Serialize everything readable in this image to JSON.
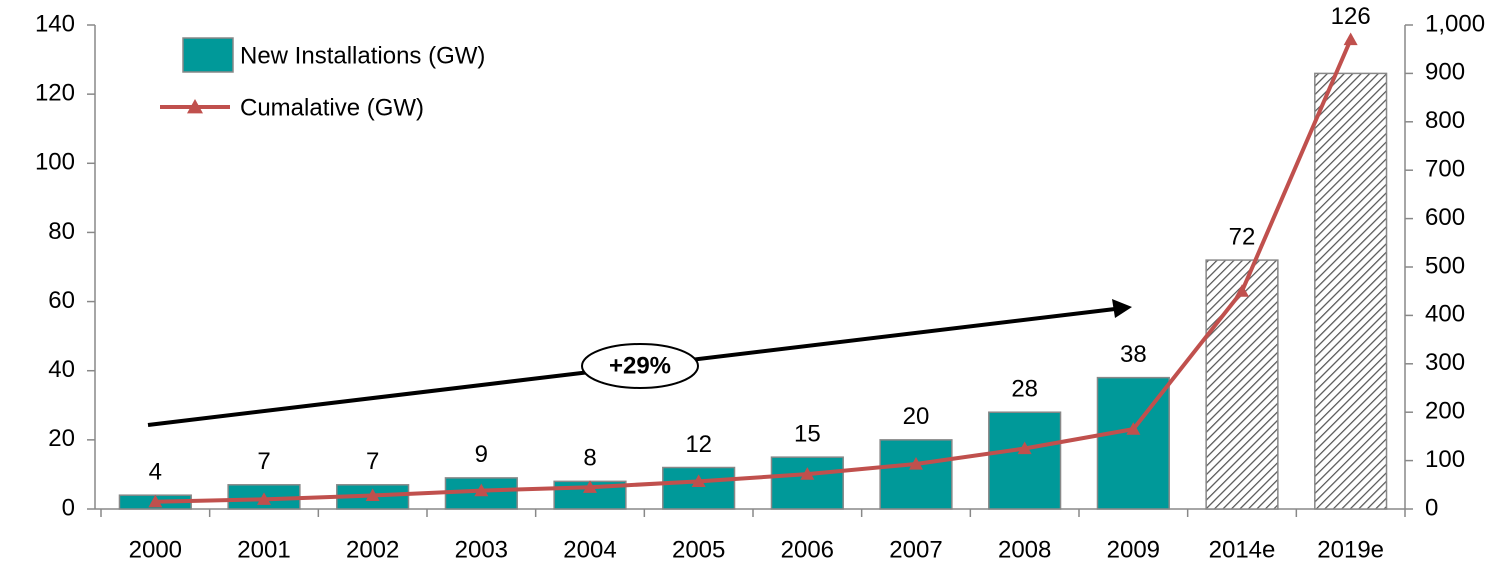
{
  "chart_data": {
    "type": "bar-line",
    "categories": [
      "2000",
      "2001",
      "2002",
      "2003",
      "2004",
      "2005",
      "2006",
      "2007",
      "2008",
      "2009",
      "2014e",
      "2019e"
    ],
    "hatched": [
      false,
      false,
      false,
      false,
      false,
      false,
      false,
      false,
      false,
      false,
      true,
      true
    ],
    "series": [
      {
        "name": "New Installations (GW)",
        "type": "bar",
        "color": "#009999",
        "values": [
          4,
          7,
          7,
          9,
          8,
          12,
          15,
          20,
          28,
          38,
          72,
          126
        ]
      },
      {
        "name": "Cumalative (GW)",
        "type": "line",
        "color": "#c0504d",
        "axis": "y2",
        "values": [
          15,
          20,
          28,
          38,
          45,
          57,
          72,
          93,
          125,
          165,
          450,
          970
        ]
      }
    ],
    "annotation": "+29%",
    "ylim": [
      0,
      140
    ],
    "yticks": [
      0,
      20,
      40,
      60,
      80,
      100,
      120,
      140
    ],
    "y2lim": [
      0,
      1000
    ],
    "y2ticks": [
      0,
      100,
      200,
      300,
      400,
      500,
      600,
      700,
      800,
      900,
      {
        "value": 1000,
        "label": "1,000"
      }
    ],
    "legend": "top-left"
  }
}
